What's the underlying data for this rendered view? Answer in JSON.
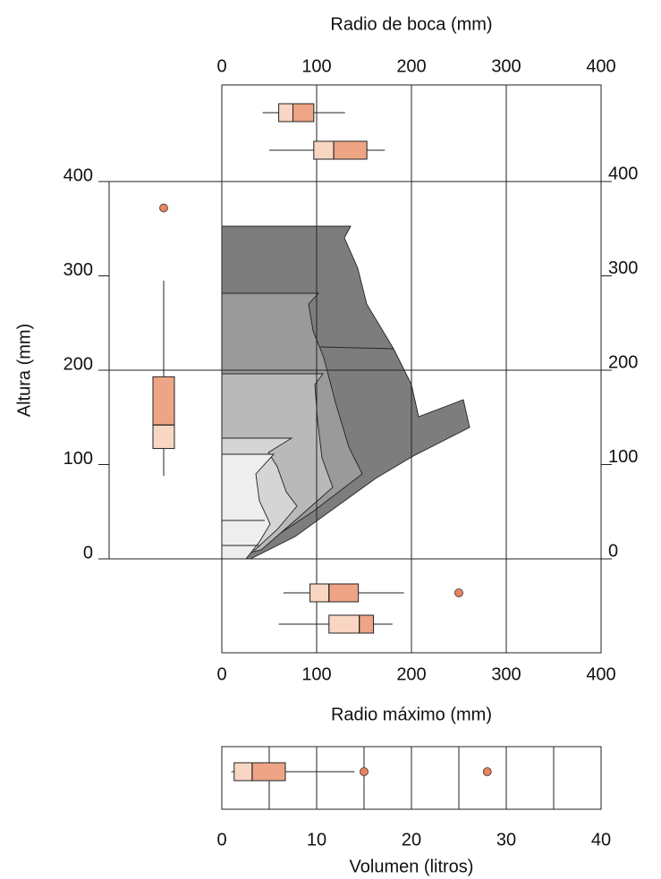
{
  "chart_data": [
    {
      "type": "box",
      "orientation": "horizontal",
      "xlabel": "Radio de boca (mm)",
      "xlim": [
        0,
        400
      ],
      "xticks": [
        0,
        100,
        200,
        300,
        400
      ],
      "xgrid": [
        100,
        200,
        300
      ],
      "colors": {
        "lower": "#f8d6c3",
        "upper": "#eea586",
        "outlier": "#e8845f"
      },
      "boxes": [
        {
          "whisker_low": 43,
          "q1": 60,
          "median": 75,
          "q3": 97,
          "whisker_high": 130
        },
        {
          "whisker_low": 50,
          "q1": 97,
          "median": 118,
          "q3": 153,
          "whisker_high": 172
        }
      ]
    },
    {
      "type": "box",
      "orientation": "vertical",
      "ylabel": "Altura (mm)",
      "ylim": [
        0,
        400
      ],
      "yticks": [
        0,
        100,
        200,
        300,
        400
      ],
      "ygrid": [
        0,
        200,
        400
      ],
      "colors": {
        "lower": "#f8d6c3",
        "upper": "#eea586",
        "outlier": "#e8845f"
      },
      "boxes": [
        {
          "whisker_low": 88,
          "q1": 117,
          "median": 142,
          "q3": 193,
          "whisker_high": 295,
          "outliers": [
            372
          ]
        }
      ]
    },
    {
      "type": "box",
      "orientation": "horizontal",
      "xlabel": "Radio máximo (mm)",
      "xlim": [
        0,
        400
      ],
      "xticks": [
        0,
        100,
        200,
        300,
        400
      ],
      "xgrid": [
        100,
        200,
        300
      ],
      "colors": {
        "lower": "#f8d6c3",
        "upper": "#eea586",
        "outlier": "#e8845f"
      },
      "boxes": [
        {
          "whisker_low": 65,
          "q1": 93,
          "median": 113,
          "q3": 144,
          "whisker_high": 192,
          "outliers": [
            250
          ]
        },
        {
          "whisker_low": 60,
          "q1": 113,
          "median": 145,
          "q3": 160,
          "whisker_high": 180
        }
      ]
    },
    {
      "type": "box",
      "orientation": "horizontal",
      "xlabel": "Volumen (litros)",
      "xlim": [
        0,
        40
      ],
      "xticks": [
        0,
        10,
        20,
        30,
        40
      ],
      "xgrid": [
        5,
        10,
        15,
        20,
        25,
        30,
        35
      ],
      "colors": {
        "lower": "#f8d6c3",
        "upper": "#eea586",
        "outlier": "#e8845f"
      },
      "boxes": [
        {
          "whisker_low": 1,
          "q1": 1.3,
          "median": 3.2,
          "q3": 6.7,
          "whisker_high": 14,
          "outliers": [
            15,
            28
          ]
        }
      ]
    }
  ]
}
